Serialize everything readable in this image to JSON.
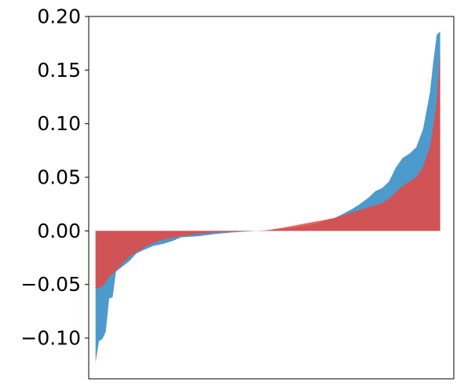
{
  "chart_data": {
    "type": "area",
    "title": "",
    "xlabel": "",
    "ylabel": "",
    "ylim": [
      -0.138,
      0.2
    ],
    "xlim": [
      -2,
      105
    ],
    "grid": false,
    "legend": "none",
    "yticks": [
      {
        "value": -0.1,
        "label": "−0.10"
      },
      {
        "value": -0.05,
        "label": "−0.05"
      },
      {
        "value": 0.0,
        "label": "0.00"
      },
      {
        "value": 0.05,
        "label": "0.05"
      },
      {
        "value": 0.1,
        "label": "0.10"
      },
      {
        "value": 0.15,
        "label": "0.15"
      },
      {
        "value": 0.2,
        "label": "0.20"
      }
    ],
    "series": [
      {
        "color": "#3a8fc7",
        "x": [
          0,
          1,
          2,
          3,
          4,
          5,
          6,
          8,
          10,
          12,
          14,
          17,
          20,
          23,
          25,
          30,
          35,
          40,
          45,
          50,
          55,
          60,
          65,
          70,
          72,
          75,
          77,
          80,
          82,
          84,
          86,
          88,
          90,
          92,
          94,
          96,
          98,
          99,
          100,
          101
        ],
        "values": [
          -0.123,
          -0.103,
          -0.101,
          -0.094,
          -0.063,
          -0.062,
          -0.038,
          -0.033,
          -0.028,
          -0.021,
          -0.018,
          -0.014,
          -0.012,
          -0.009,
          -0.006,
          -0.005,
          -0.003,
          -0.0015,
          -0.0005,
          0.0005,
          0.002,
          0.004,
          0.007,
          0.012,
          0.015,
          0.02,
          0.024,
          0.031,
          0.037,
          0.04,
          0.046,
          0.059,
          0.068,
          0.072,
          0.078,
          0.095,
          0.129,
          0.158,
          0.183,
          0.186
        ]
      },
      {
        "color": "#e8473f",
        "x": [
          0,
          2,
          4,
          6,
          8,
          10,
          12,
          15,
          18,
          20,
          25,
          30,
          35,
          40,
          45,
          50,
          55,
          60,
          65,
          70,
          72,
          75,
          77,
          80,
          82,
          84,
          86,
          88,
          90,
          92,
          94,
          96,
          98,
          99,
          100,
          101
        ],
        "values": [
          -0.054,
          -0.052,
          -0.043,
          -0.037,
          -0.03,
          -0.024,
          -0.02,
          -0.014,
          -0.01,
          -0.008,
          -0.005,
          -0.003,
          -0.0015,
          -0.0008,
          -0.0002,
          0.0005,
          0.003,
          0.006,
          0.009,
          0.012,
          0.014,
          0.017,
          0.019,
          0.022,
          0.024,
          0.026,
          0.03,
          0.036,
          0.042,
          0.046,
          0.05,
          0.06,
          0.078,
          0.098,
          0.12,
          0.168
        ]
      }
    ]
  }
}
